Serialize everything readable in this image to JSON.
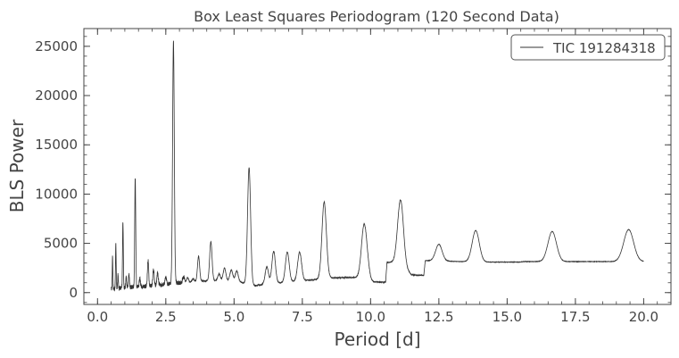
{
  "chart_data": {
    "type": "line",
    "title": "Box Least Squares Periodogram (120 Second Data)",
    "xlabel": "Period [d]",
    "ylabel": "BLS Power",
    "xlim": [
      -0.5,
      21.0
    ],
    "ylim": [
      -1200,
      26800
    ],
    "x_ticks": [
      "0.0",
      "2.5",
      "5.0",
      "7.5",
      "10.0",
      "12.5",
      "15.0",
      "17.5",
      "20.0"
    ],
    "y_ticks": [
      "0",
      "5000",
      "10000",
      "15000",
      "20000",
      "25000"
    ],
    "x_minor_step": 0.5,
    "y_minor_step": 1000,
    "grid": false,
    "legend": {
      "placement": "top-right"
    },
    "series": [
      {
        "name": "TIC 191284318",
        "color": "#333333",
        "baseline": [
          [
            0.5,
            400
          ],
          [
            1.0,
            500
          ],
          [
            2.0,
            700
          ],
          [
            2.7,
            900
          ],
          [
            3.0,
            1000
          ],
          [
            4.0,
            1200
          ],
          [
            5.0,
            1250
          ],
          [
            5.7,
            700
          ],
          [
            6.5,
            950
          ],
          [
            7.5,
            1200
          ],
          [
            8.2,
            1400
          ],
          [
            8.5,
            1500
          ],
          [
            9.7,
            1550
          ],
          [
            10.0,
            1100
          ],
          [
            10.55,
            1050
          ],
          [
            10.6,
            3050
          ],
          [
            11.0,
            3150
          ],
          [
            11.5,
            1800
          ],
          [
            11.95,
            1750
          ],
          [
            12.0,
            3250
          ],
          [
            14.0,
            3100
          ],
          [
            15.5,
            3100
          ],
          [
            15.6,
            3150
          ],
          [
            20.0,
            3150
          ]
        ],
        "peaks": [
          [
            0.55,
            3600
          ],
          [
            0.67,
            5000
          ],
          [
            0.75,
            1800
          ],
          [
            0.93,
            7300
          ],
          [
            1.05,
            1600
          ],
          [
            1.15,
            2000
          ],
          [
            1.38,
            11600
          ],
          [
            1.55,
            1500
          ],
          [
            1.85,
            3300
          ],
          [
            2.05,
            2300
          ],
          [
            2.2,
            2000
          ],
          [
            2.5,
            1500
          ],
          [
            2.78,
            25500
          ],
          [
            3.15,
            1600
          ],
          [
            3.3,
            1500
          ],
          [
            3.5,
            1400
          ],
          [
            3.7,
            3700
          ],
          [
            4.15,
            5200
          ],
          [
            4.45,
            1900
          ],
          [
            4.65,
            2500
          ],
          [
            4.9,
            2300
          ],
          [
            5.1,
            2200
          ],
          [
            5.55,
            12700
          ],
          [
            6.2,
            2600
          ],
          [
            6.45,
            4200
          ],
          [
            6.95,
            4100
          ],
          [
            7.4,
            4100
          ],
          [
            8.3,
            9200
          ],
          [
            9.75,
            5900
          ],
          [
            9.85,
            3000
          ],
          [
            11.1,
            9400
          ],
          [
            12.5,
            4900
          ],
          [
            13.85,
            6300
          ],
          [
            16.65,
            6200
          ],
          [
            19.45,
            6400
          ]
        ]
      }
    ]
  }
}
